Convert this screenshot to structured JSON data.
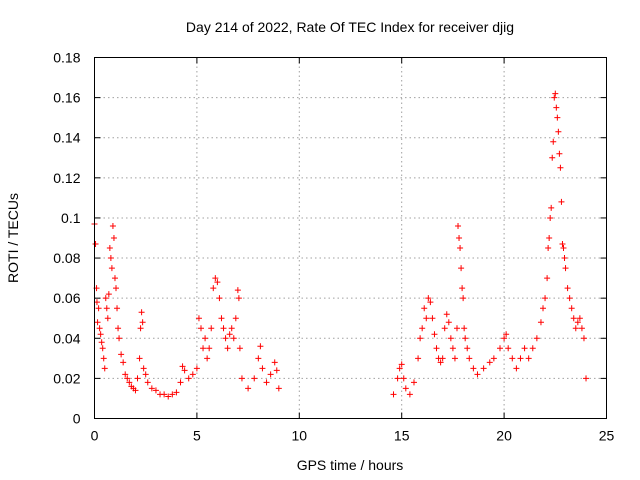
{
  "chart_data": {
    "type": "scatter",
    "title": "Day 214 of 2022, Rate Of TEC Index for receiver djig",
    "xlabel": "GPS time / hours",
    "ylabel": "ROTI / TECUs",
    "xlim": [
      0,
      25
    ],
    "ylim": [
      0,
      0.18
    ],
    "x_ticks": [
      0,
      5,
      10,
      15,
      20,
      25
    ],
    "y_ticks": [
      0,
      0.02,
      0.04,
      0.06,
      0.08,
      0.1,
      0.12,
      0.14,
      0.16,
      0.18
    ],
    "x_tick_labels": [
      "0",
      "5",
      "10",
      "15",
      "20",
      "25"
    ],
    "y_tick_labels": [
      "0",
      "0.02",
      "0.04",
      "0.06",
      "0.08",
      "0.1",
      "0.12",
      "0.14",
      "0.16",
      "0.18"
    ],
    "grid": true,
    "marker": "plus",
    "color": "#ff0000",
    "series": [
      {
        "values": [
          [
            0.0,
            0.097
          ],
          [
            0.05,
            0.087
          ],
          [
            0.1,
            0.065
          ],
          [
            0.12,
            0.058
          ],
          [
            0.15,
            0.048
          ],
          [
            0.2,
            0.055
          ],
          [
            0.25,
            0.045
          ],
          [
            0.3,
            0.042
          ],
          [
            0.35,
            0.038
          ],
          [
            0.4,
            0.035
          ],
          [
            0.45,
            0.03
          ],
          [
            0.5,
            0.025
          ],
          [
            0.55,
            0.06
          ],
          [
            0.6,
            0.055
          ],
          [
            0.65,
            0.05
          ],
          [
            0.7,
            0.062
          ],
          [
            0.75,
            0.085
          ],
          [
            0.8,
            0.08
          ],
          [
            0.85,
            0.075
          ],
          [
            0.9,
            0.096
          ],
          [
            0.95,
            0.09
          ],
          [
            1.0,
            0.07
          ],
          [
            1.05,
            0.065
          ],
          [
            1.1,
            0.055
          ],
          [
            1.15,
            0.045
          ],
          [
            1.2,
            0.04
          ],
          [
            1.3,
            0.032
          ],
          [
            1.4,
            0.028
          ],
          [
            1.5,
            0.022
          ],
          [
            1.6,
            0.02
          ],
          [
            1.7,
            0.018
          ],
          [
            1.8,
            0.016
          ],
          [
            1.9,
            0.015
          ],
          [
            2.0,
            0.014
          ],
          [
            2.1,
            0.02
          ],
          [
            2.2,
            0.03
          ],
          [
            2.25,
            0.045
          ],
          [
            2.3,
            0.053
          ],
          [
            2.35,
            0.048
          ],
          [
            2.4,
            0.025
          ],
          [
            2.5,
            0.022
          ],
          [
            2.6,
            0.018
          ],
          [
            2.8,
            0.015
          ],
          [
            3.0,
            0.014
          ],
          [
            3.2,
            0.012
          ],
          [
            3.4,
            0.012
          ],
          [
            3.6,
            0.011
          ],
          [
            3.8,
            0.012
          ],
          [
            4.0,
            0.013
          ],
          [
            4.2,
            0.018
          ],
          [
            4.3,
            0.026
          ],
          [
            4.4,
            0.024
          ],
          [
            4.6,
            0.02
          ],
          [
            4.8,
            0.022
          ],
          [
            5.0,
            0.025
          ],
          [
            5.1,
            0.05
          ],
          [
            5.2,
            0.045
          ],
          [
            5.3,
            0.035
          ],
          [
            5.4,
            0.04
          ],
          [
            5.5,
            0.03
          ],
          [
            5.6,
            0.035
          ],
          [
            5.7,
            0.045
          ],
          [
            5.8,
            0.065
          ],
          [
            5.9,
            0.07
          ],
          [
            6.0,
            0.068
          ],
          [
            6.1,
            0.06
          ],
          [
            6.2,
            0.05
          ],
          [
            6.3,
            0.045
          ],
          [
            6.4,
            0.04
          ],
          [
            6.5,
            0.035
          ],
          [
            6.6,
            0.042
          ],
          [
            6.7,
            0.045
          ],
          [
            6.8,
            0.04
          ],
          [
            6.9,
            0.05
          ],
          [
            7.0,
            0.064
          ],
          [
            7.05,
            0.06
          ],
          [
            7.1,
            0.035
          ],
          [
            7.2,
            0.02
          ],
          [
            7.5,
            0.015
          ],
          [
            7.8,
            0.02
          ],
          [
            8.0,
            0.03
          ],
          [
            8.1,
            0.036
          ],
          [
            8.2,
            0.025
          ],
          [
            8.4,
            0.018
          ],
          [
            8.6,
            0.022
          ],
          [
            8.8,
            0.028
          ],
          [
            8.9,
            0.024
          ],
          [
            9.0,
            0.015
          ],
          [
            14.6,
            0.012
          ],
          [
            14.8,
            0.02
          ],
          [
            14.9,
            0.025
          ],
          [
            15.0,
            0.027
          ],
          [
            15.1,
            0.02
          ],
          [
            15.2,
            0.015
          ],
          [
            15.4,
            0.012
          ],
          [
            15.6,
            0.018
          ],
          [
            15.8,
            0.03
          ],
          [
            15.9,
            0.04
          ],
          [
            16.0,
            0.045
          ],
          [
            16.1,
            0.055
          ],
          [
            16.2,
            0.05
          ],
          [
            16.3,
            0.06
          ],
          [
            16.4,
            0.058
          ],
          [
            16.5,
            0.05
          ],
          [
            16.6,
            0.042
          ],
          [
            16.7,
            0.035
          ],
          [
            16.8,
            0.03
          ],
          [
            16.9,
            0.028
          ],
          [
            17.0,
            0.03
          ],
          [
            17.1,
            0.045
          ],
          [
            17.2,
            0.052
          ],
          [
            17.3,
            0.048
          ],
          [
            17.4,
            0.04
          ],
          [
            17.5,
            0.035
          ],
          [
            17.6,
            0.03
          ],
          [
            17.7,
            0.045
          ],
          [
            17.75,
            0.096
          ],
          [
            17.8,
            0.09
          ],
          [
            17.85,
            0.085
          ],
          [
            17.9,
            0.075
          ],
          [
            17.95,
            0.065
          ],
          [
            18.0,
            0.06
          ],
          [
            18.05,
            0.045
          ],
          [
            18.1,
            0.04
          ],
          [
            18.2,
            0.035
          ],
          [
            18.3,
            0.03
          ],
          [
            18.5,
            0.025
          ],
          [
            18.7,
            0.022
          ],
          [
            19.0,
            0.025
          ],
          [
            19.3,
            0.028
          ],
          [
            19.5,
            0.03
          ],
          [
            19.8,
            0.035
          ],
          [
            20.0,
            0.04
          ],
          [
            20.1,
            0.042
          ],
          [
            20.2,
            0.035
          ],
          [
            20.4,
            0.03
          ],
          [
            20.6,
            0.025
          ],
          [
            20.8,
            0.03
          ],
          [
            21.0,
            0.035
          ],
          [
            21.2,
            0.03
          ],
          [
            21.4,
            0.035
          ],
          [
            21.6,
            0.04
          ],
          [
            21.8,
            0.048
          ],
          [
            21.9,
            0.055
          ],
          [
            22.0,
            0.06
          ],
          [
            22.1,
            0.07
          ],
          [
            22.15,
            0.085
          ],
          [
            22.2,
            0.09
          ],
          [
            22.25,
            0.1
          ],
          [
            22.3,
            0.105
          ],
          [
            22.35,
            0.13
          ],
          [
            22.4,
            0.138
          ],
          [
            22.45,
            0.16
          ],
          [
            22.5,
            0.162
          ],
          [
            22.55,
            0.155
          ],
          [
            22.6,
            0.15
          ],
          [
            22.65,
            0.143
          ],
          [
            22.7,
            0.132
          ],
          [
            22.75,
            0.125
          ],
          [
            22.8,
            0.108
          ],
          [
            22.85,
            0.087
          ],
          [
            22.9,
            0.085
          ],
          [
            22.95,
            0.08
          ],
          [
            23.0,
            0.075
          ],
          [
            23.1,
            0.065
          ],
          [
            23.2,
            0.06
          ],
          [
            23.3,
            0.055
          ],
          [
            23.4,
            0.05
          ],
          [
            23.5,
            0.045
          ],
          [
            23.6,
            0.048
          ],
          [
            23.7,
            0.05
          ],
          [
            23.8,
            0.045
          ],
          [
            23.9,
            0.04
          ],
          [
            24.0,
            0.02
          ]
        ]
      }
    ]
  }
}
